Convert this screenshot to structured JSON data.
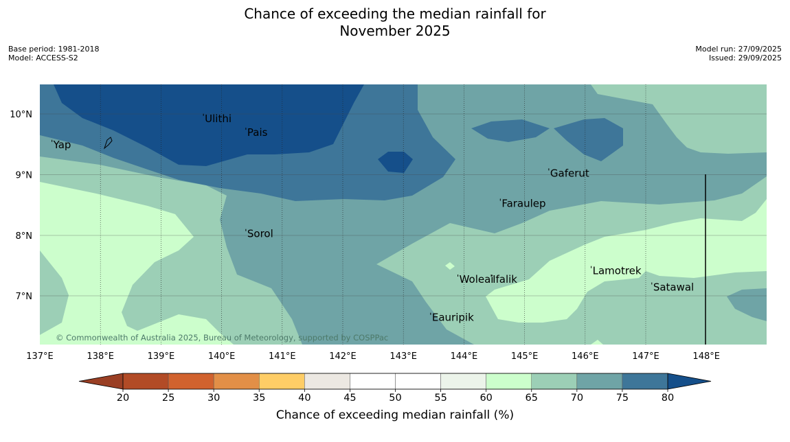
{
  "title": {
    "line1": "Chance of exceeding the median rainfall for",
    "line2": "November 2025"
  },
  "meta_left": {
    "base_period": "Base period: 1981-2018",
    "model": "Model: ACCESS-S2"
  },
  "meta_right": {
    "model_run": "Model run: 27/09/2025",
    "issued": "Issued: 29/09/2025"
  },
  "map": {
    "copyright": "© Commonwealth of Australia 2025, Bureau of Meteorology, supported by COSPPac",
    "lon_labels": [
      "137°E",
      "138°E",
      "139°E",
      "140°E",
      "141°E",
      "142°E",
      "143°E",
      "144°E",
      "145°E",
      "146°E",
      "147°E",
      "148°E"
    ],
    "lat_labels": [
      "10°N",
      "9°N",
      "8°N",
      "7°N"
    ],
    "places": [
      {
        "name": "Yap",
        "lon": 137.2,
        "lat": 9.55
      },
      {
        "name": "Ulithi",
        "lon": 139.7,
        "lat": 9.98
      },
      {
        "name": "Pais",
        "lon": 140.4,
        "lat": 9.75
      },
      {
        "name": "Gaferut",
        "lon": 145.4,
        "lat": 9.08
      },
      {
        "name": "Faraulep",
        "lon": 144.6,
        "lat": 8.58
      },
      {
        "name": "Sorol",
        "lon": 140.4,
        "lat": 8.08
      },
      {
        "name": "Woleai",
        "lon": 143.9,
        "lat": 7.33
      },
      {
        "name": "Ifalik",
        "lon": 144.45,
        "lat": 7.33
      },
      {
        "name": "Lamotrek",
        "lon": 146.1,
        "lat": 7.47
      },
      {
        "name": "Satawal",
        "lon": 147.1,
        "lat": 7.2
      },
      {
        "name": "Eauripik",
        "lon": 143.45,
        "lat": 6.7
      }
    ]
  },
  "colorbar": {
    "tick_labels": [
      "20",
      "25",
      "30",
      "35",
      "40",
      "45",
      "50",
      "55",
      "60",
      "65",
      "70",
      "75",
      "80"
    ],
    "colors": [
      "#b24b26",
      "#d1622e",
      "#e28f47",
      "#fecd66",
      "#ece8e2",
      "#ffffff",
      "#ffffff",
      "#ecf4ea",
      "#ccfecc",
      "#9ccfb6",
      "#6fa4a6",
      "#3e7699"
    ],
    "under_color": "#9a3f24",
    "over_color": "#154f8a",
    "label": "Chance of exceeding median rainfall (%)"
  },
  "colors": {
    "c60_65": "#ccfecc",
    "c65_70": "#9ccfb6",
    "c70_75": "#6fa4a6",
    "c75_80": "#3e7699",
    "c80_plus": "#154f8a"
  }
}
